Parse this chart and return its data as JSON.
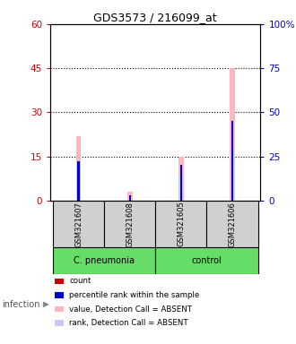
{
  "title": "GDS3573 / 216099_at",
  "samples": [
    "GSM321607",
    "GSM321608",
    "GSM321605",
    "GSM321606"
  ],
  "groups": [
    "C. pneumonia",
    "C. pneumonia",
    "control",
    "control"
  ],
  "group_labels": [
    "C. pneumonia",
    "control"
  ],
  "bar_colors_absent_value": "#ffb6c1",
  "bar_colors_absent_rank": "#c8c8ff",
  "bar_colors_count": "#cc0000",
  "bar_colors_rank": "#0000cc",
  "count_values": [
    0,
    0,
    0,
    0
  ],
  "rank_values": [
    22,
    3,
    20,
    45
  ],
  "absent_value_values": [
    22,
    3,
    15,
    45
  ],
  "absent_rank_values": [
    20,
    3,
    14,
    28
  ],
  "ylim_left": [
    0,
    60
  ],
  "ylim_right": [
    0,
    100
  ],
  "yticks_left": [
    0,
    15,
    30,
    45,
    60
  ],
  "yticks_right": [
    0,
    25,
    50,
    75,
    100
  ],
  "ytick_labels_right": [
    "0",
    "25",
    "50",
    "75",
    "100%"
  ],
  "left_color": "#cc0000",
  "right_color": "#0000cc",
  "infection_label": "infection",
  "legend_items": [
    {
      "color": "#cc0000",
      "label": "count"
    },
    {
      "color": "#0000cc",
      "label": "percentile rank within the sample"
    },
    {
      "color": "#ffb6c1",
      "label": "value, Detection Call = ABSENT"
    },
    {
      "color": "#c8c8ff",
      "label": "rank, Detection Call = ABSENT"
    }
  ],
  "x_positions": [
    0,
    1,
    2,
    3
  ],
  "gray_color": "#d0d0d0",
  "green_color": "#66dd66"
}
